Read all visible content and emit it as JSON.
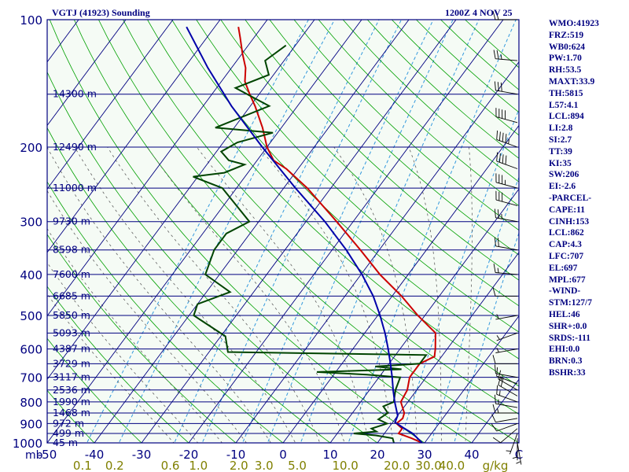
{
  "header": {
    "station": "VGTJ (41923) Sounding",
    "datetime": "1200Z  4 NOV 25"
  },
  "stats": [
    "WMO:41923",
    "FRZ:519",
    "WB0:624",
    "PW:1.70",
    "RH:53.5",
    "MAXT:33.9",
    "TH:5815",
    "L57:4.1",
    "LCL:894",
    "LI:2.8",
    "SI:2.7",
    "TT:39",
    "KI:35",
    "SW:206",
    "EI:-2.6",
    "-PARCEL-",
    "CAPE:11",
    "CINH:153",
    "LCL:862",
    "CAP:4.3",
    "LFC:707",
    "EL:697",
    "MPL:677",
    "-WIND-",
    "STM:127/7",
    "HEL:46",
    "SHR+:0.0",
    "SRDS:-111",
    "EHI:0.0",
    "BRN:0.3",
    "BSHR:33"
  ],
  "colors": {
    "background": "#f5fbf5",
    "text": "#000080",
    "isobar": "#000080",
    "isotherm": "#000080",
    "dry_adiabat": "#00a000",
    "moist_adiabat": "#606060",
    "mixing_ratio": "#3399dd",
    "temperature": "#cc0000",
    "dewpoint": "#004400",
    "parcel": "#0000aa",
    "mixing_ratio_labels": "#808000",
    "wind_barbs": "#000000"
  },
  "chart_data": {
    "type": "skew-t log-p",
    "y_axis": {
      "label": "mb",
      "scale": "log",
      "range": [
        1000,
        100
      ],
      "ticks": [
        100,
        200,
        300,
        400,
        500,
        600,
        700,
        800,
        900,
        1000
      ]
    },
    "x_axis": {
      "label": "C",
      "range": [
        -50,
        50
      ],
      "ticks": [
        -50,
        -40,
        -30,
        -20,
        -10,
        0,
        10,
        20,
        30,
        40
      ]
    },
    "mixing_ratio_axis": {
      "unit": "g/kg",
      "ticks": [
        {
          "label": "0.1",
          "value": 0.1
        },
        {
          "label": "0.2",
          "value": 0.2
        },
        {
          "label": "0.6",
          "value": 0.6
        },
        {
          "label": "1.0",
          "value": 1.0
        },
        {
          "label": "2.0",
          "value": 2.0
        },
        {
          "label": "3.0",
          "value": 3.0
        },
        {
          "label": "5.0",
          "value": 5.0
        },
        {
          "label": "10.0",
          "value": 10.0
        },
        {
          "label": "20.0",
          "value": 20.0
        },
        {
          "label": "30.0",
          "value": 30.0
        },
        {
          "label": "40.0",
          "value": 40.0
        }
      ]
    },
    "height_labels": [
      {
        "label": "45 m",
        "p": 1000
      },
      {
        "label": "499 m",
        "p": 950
      },
      {
        "label": "972 m",
        "p": 900
      },
      {
        "label": "1468 m",
        "p": 850
      },
      {
        "label": "1990 m",
        "p": 800
      },
      {
        "label": "2536 m",
        "p": 750
      },
      {
        "label": "3117 m",
        "p": 700
      },
      {
        "label": "3729 m",
        "p": 650
      },
      {
        "label": "4387 m",
        "p": 600
      },
      {
        "label": "5093 m",
        "p": 550
      },
      {
        "label": "5850 m",
        "p": 500
      },
      {
        "label": "6685 m",
        "p": 450
      },
      {
        "label": "7600 m",
        "p": 400
      },
      {
        "label": "8598 m",
        "p": 350
      },
      {
        "label": "9730 m",
        "p": 300
      },
      {
        "label": "11000 m",
        "p": 250
      },
      {
        "label": "12490 m",
        "p": 200
      },
      {
        "label": "14300 m",
        "p": 150
      }
    ],
    "series": [
      {
        "name": "temperature",
        "points": [
          [
            1000,
            29.5
          ],
          [
            975,
            26.5
          ],
          [
            950,
            23
          ],
          [
            925,
            23
          ],
          [
            900,
            21
          ],
          [
            875,
            21.5
          ],
          [
            850,
            21
          ],
          [
            800,
            18.5
          ],
          [
            750,
            18
          ],
          [
            700,
            16.5
          ],
          [
            650,
            16.5
          ],
          [
            625,
            18.5
          ],
          [
            600,
            17.5
          ],
          [
            550,
            15
          ],
          [
            500,
            8.5
          ],
          [
            450,
            2
          ],
          [
            400,
            -6
          ],
          [
            350,
            -14
          ],
          [
            300,
            -23.5
          ],
          [
            250,
            -35
          ],
          [
            225,
            -42.5
          ],
          [
            215,
            -46.5
          ],
          [
            200,
            -50
          ],
          [
            180,
            -54
          ],
          [
            160,
            -59
          ],
          [
            150,
            -62
          ],
          [
            140,
            -65
          ],
          [
            130,
            -67
          ],
          [
            120,
            -70
          ],
          [
            110,
            -73
          ],
          [
            104,
            -75
          ]
        ]
      },
      {
        "name": "dewpoint",
        "points": [
          [
            1000,
            23.5
          ],
          [
            975,
            22.5
          ],
          [
            960,
            18.5
          ],
          [
            950,
            13.5
          ],
          [
            940,
            18
          ],
          [
            925,
            16.5
          ],
          [
            900,
            19
          ],
          [
            880,
            16.5
          ],
          [
            850,
            17.5
          ],
          [
            820,
            15.5
          ],
          [
            800,
            17
          ],
          [
            750,
            15.5
          ],
          [
            700,
            14.5
          ],
          [
            690,
            7
          ],
          [
            680,
            -4
          ],
          [
            670,
            13.5
          ],
          [
            660,
            7.5
          ],
          [
            650,
            16.5
          ],
          [
            620,
            16.5
          ],
          [
            610,
            -26
          ],
          [
            560,
            -29
          ],
          [
            500,
            -39
          ],
          [
            470,
            -40
          ],
          [
            440,
            -35
          ],
          [
            400,
            -43
          ],
          [
            350,
            -45
          ],
          [
            320,
            -45
          ],
          [
            300,
            -42
          ],
          [
            250,
            -53
          ],
          [
            235,
            -61
          ],
          [
            230,
            -55
          ],
          [
            220,
            -52
          ],
          [
            215,
            -56
          ],
          [
            205,
            -59
          ],
          [
            195,
            -57
          ],
          [
            185,
            -51
          ],
          [
            180,
            -64
          ],
          [
            160,
            -56
          ],
          [
            145,
            -66
          ],
          [
            135,
            -61
          ],
          [
            125,
            -64
          ],
          [
            115,
            -62
          ]
        ]
      },
      {
        "name": "parcel",
        "points": [
          [
            1000,
            29.5
          ],
          [
            950,
            26
          ],
          [
            920,
            23
          ],
          [
            894,
            20.5
          ],
          [
            862,
            20
          ],
          [
            800,
            17.2
          ],
          [
            750,
            15
          ],
          [
            700,
            12.8
          ],
          [
            650,
            10.3
          ],
          [
            600,
            7.5
          ],
          [
            550,
            4.3
          ],
          [
            500,
            0.5
          ],
          [
            450,
            -4
          ],
          [
            400,
            -9.8
          ],
          [
            350,
            -17
          ],
          [
            300,
            -26
          ],
          [
            250,
            -37.5
          ],
          [
            200,
            -51
          ],
          [
            160,
            -64
          ],
          [
            130,
            -75
          ],
          [
            104,
            -86
          ]
        ]
      }
    ],
    "wind_barbs": [
      {
        "p": 1000,
        "dir": 170,
        "spd": 5
      },
      {
        "p": 975,
        "dir": 180,
        "spd": 5
      },
      {
        "p": 950,
        "dir": 200,
        "spd": 5
      },
      {
        "p": 925,
        "dir": 230,
        "spd": 10
      },
      {
        "p": 900,
        "dir": 250,
        "spd": 10
      },
      {
        "p": 875,
        "dir": 260,
        "spd": 10
      },
      {
        "p": 850,
        "dir": 270,
        "spd": 15
      },
      {
        "p": 825,
        "dir": 280,
        "spd": 15
      },
      {
        "p": 800,
        "dir": 290,
        "spd": 15
      },
      {
        "p": 775,
        "dir": 300,
        "spd": 20
      },
      {
        "p": 750,
        "dir": 300,
        "spd": 15
      },
      {
        "p": 725,
        "dir": 290,
        "spd": 10
      },
      {
        "p": 700,
        "dir": 280,
        "spd": 10
      },
      {
        "p": 650,
        "dir": 270,
        "spd": 10
      },
      {
        "p": 600,
        "dir": 260,
        "spd": 5
      },
      {
        "p": 550,
        "dir": 250,
        "spd": 5
      },
      {
        "p": 500,
        "dir": 260,
        "spd": 5
      },
      {
        "p": 450,
        "dir": 270,
        "spd": 10
      },
      {
        "p": 400,
        "dir": 275,
        "spd": 15
      },
      {
        "p": 350,
        "dir": 280,
        "spd": 20
      },
      {
        "p": 300,
        "dir": 280,
        "spd": 25
      },
      {
        "p": 275,
        "dir": 285,
        "spd": 30
      },
      {
        "p": 250,
        "dir": 285,
        "spd": 35
      },
      {
        "p": 225,
        "dir": 290,
        "spd": 40
      },
      {
        "p": 200,
        "dir": 290,
        "spd": 45
      },
      {
        "p": 175,
        "dir": 285,
        "spd": 40
      },
      {
        "p": 150,
        "dir": 280,
        "spd": 30
      },
      {
        "p": 125,
        "dir": 275,
        "spd": 25
      },
      {
        "p": 100,
        "dir": 270,
        "spd": 20
      }
    ]
  }
}
